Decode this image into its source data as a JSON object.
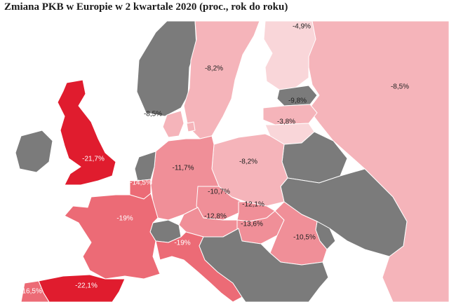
{
  "title": "Zmiana PKB w Europie w 2 kwartale 2020 (proc., rok do roku)",
  "colors": {
    "sea": "#ffffff",
    "no_data": "#7b7b7b",
    "severe": "#e01c2e",
    "high": "#ec6b76",
    "medium": "#f08f98",
    "low": "#f5b4ba",
    "mild": "#f9d6d9",
    "label_dark": "#222222",
    "label_light": "#ffffff"
  },
  "regions": [
    {
      "id": "norway",
      "value": "",
      "fill": "no_data"
    },
    {
      "id": "sweden",
      "value": "-8,2%",
      "fill": "low"
    },
    {
      "id": "finland",
      "value": "-4,9%",
      "fill": "mild"
    },
    {
      "id": "russia",
      "value": "-8,5%",
      "fill": "low"
    },
    {
      "id": "estonia",
      "value": "",
      "fill": "no_data"
    },
    {
      "id": "latvia",
      "value": "-9,8%",
      "fill": "low"
    },
    {
      "id": "lithuania",
      "value": "-3,8%",
      "fill": "mild"
    },
    {
      "id": "denmark",
      "value": "-8,5%",
      "fill": "low"
    },
    {
      "id": "uk",
      "value": "-21,7%",
      "fill": "severe"
    },
    {
      "id": "ireland",
      "value": "",
      "fill": "no_data"
    },
    {
      "id": "netherlands",
      "value": "",
      "fill": "no_data"
    },
    {
      "id": "belgium",
      "value": "-14,5%",
      "fill": "high"
    },
    {
      "id": "germany",
      "value": "-11,7%",
      "fill": "medium"
    },
    {
      "id": "poland",
      "value": "-8,2%",
      "fill": "low"
    },
    {
      "id": "belarus",
      "value": "",
      "fill": "no_data"
    },
    {
      "id": "ukraine",
      "value": "",
      "fill": "no_data"
    },
    {
      "id": "czechia",
      "value": "-10,7%",
      "fill": "medium"
    },
    {
      "id": "slovakia",
      "value": "-12,1%",
      "fill": "medium"
    },
    {
      "id": "austria",
      "value": "-12,8%",
      "fill": "medium"
    },
    {
      "id": "hungary",
      "value": "-13,6%",
      "fill": "medium"
    },
    {
      "id": "romania",
      "value": "-10,5%",
      "fill": "medium"
    },
    {
      "id": "moldova",
      "value": "",
      "fill": "no_data"
    },
    {
      "id": "france",
      "value": "-19%",
      "fill": "high"
    },
    {
      "id": "switzerland",
      "value": "",
      "fill": "no_data"
    },
    {
      "id": "italy",
      "value": "-19%",
      "fill": "high"
    },
    {
      "id": "balkans",
      "value": "",
      "fill": "no_data"
    },
    {
      "id": "spain",
      "value": "-22,1%",
      "fill": "severe"
    },
    {
      "id": "portugal",
      "value": "-16,5%",
      "fill": "high"
    }
  ]
}
